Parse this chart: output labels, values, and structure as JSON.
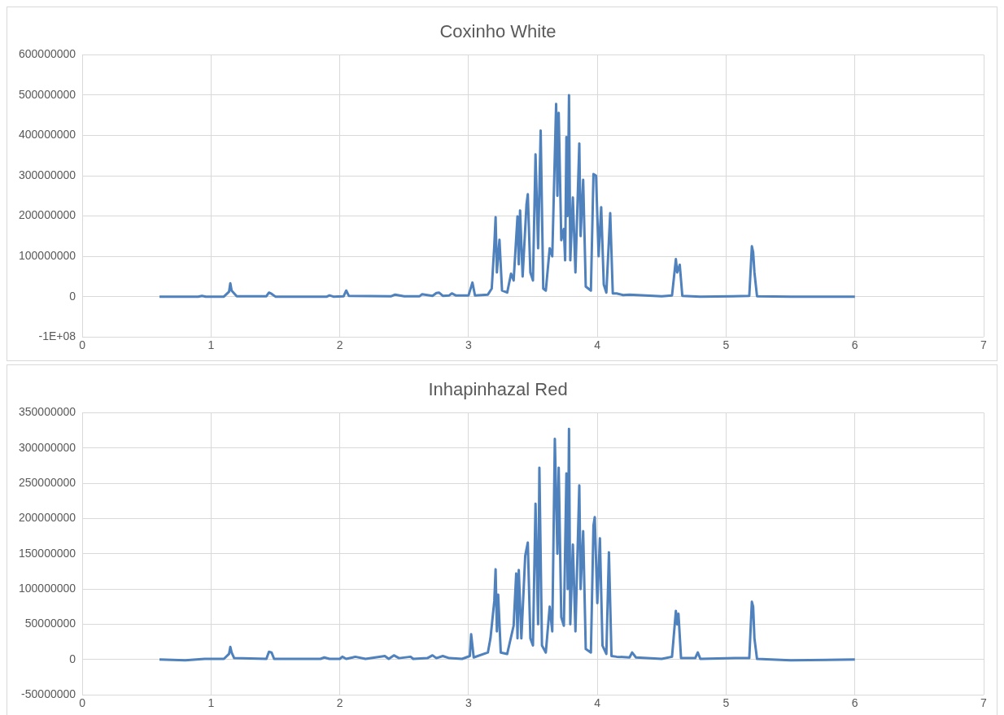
{
  "chart_data": [
    {
      "type": "line",
      "title": "Coxinho White",
      "xlim": [
        0,
        7
      ],
      "xticks": [
        0,
        1,
        2,
        3,
        4,
        5,
        6,
        7
      ],
      "ylim": [
        -100000000,
        600000000
      ],
      "yticks": [
        {
          "value": -100000000,
          "label": "-1E+08"
        },
        0,
        100000000,
        200000000,
        300000000,
        400000000,
        500000000,
        600000000
      ],
      "grid": true,
      "legend": false,
      "marker": "none",
      "series": [
        {
          "color": "#4f81bd",
          "x": [
            0.6,
            0.9,
            0.93,
            0.96,
            1.1,
            1.14,
            1.15,
            1.16,
            1.18,
            1.2,
            1.43,
            1.45,
            1.47,
            1.5,
            1.9,
            1.92,
            1.95,
            2.03,
            2.05,
            2.07,
            2.4,
            2.43,
            2.5,
            2.62,
            2.64,
            2.72,
            2.75,
            2.77,
            2.8,
            2.85,
            2.87,
            2.9,
            3.0,
            3.03,
            3.05,
            3.15,
            3.18,
            3.2,
            3.21,
            3.22,
            3.24,
            3.26,
            3.3,
            3.33,
            3.35,
            3.38,
            3.39,
            3.4,
            3.42,
            3.45,
            3.46,
            3.48,
            3.5,
            3.52,
            3.54,
            3.56,
            3.58,
            3.6,
            3.63,
            3.65,
            3.68,
            3.69,
            3.7,
            3.72,
            3.74,
            3.75,
            3.76,
            3.77,
            3.78,
            3.79,
            3.81,
            3.83,
            3.86,
            3.87,
            3.89,
            3.91,
            3.95,
            3.97,
            3.99,
            4.01,
            4.03,
            4.05,
            4.07,
            4.1,
            4.12,
            4.15,
            4.2,
            4.25,
            4.5,
            4.58,
            4.61,
            4.62,
            4.64,
            4.66,
            4.8,
            5.05,
            5.18,
            5.2,
            5.21,
            5.22,
            5.24,
            5.5,
            6.0
          ],
          "values": [
            0,
            0,
            2000000,
            0,
            0,
            12000000,
            33000000,
            15000000,
            8000000,
            1000000,
            1000000,
            10000000,
            7000000,
            0,
            0,
            3000000,
            0,
            1000000,
            15000000,
            2000000,
            1000000,
            5000000,
            1000000,
            1000000,
            6000000,
            2000000,
            9000000,
            10000000,
            2000000,
            3000000,
            8000000,
            3000000,
            3000000,
            35000000,
            3000000,
            5000000,
            20000000,
            127000000,
            197000000,
            60000000,
            141000000,
            15000000,
            10000000,
            57000000,
            40000000,
            199000000,
            80000000,
            214000000,
            50000000,
            229000000,
            254000000,
            60000000,
            40000000,
            353000000,
            120000000,
            412000000,
            20000000,
            15000000,
            120000000,
            100000000,
            478000000,
            250000000,
            456000000,
            140000000,
            168000000,
            90000000,
            396000000,
            200000000,
            500000000,
            90000000,
            246000000,
            60000000,
            380000000,
            150000000,
            290000000,
            25000000,
            15000000,
            304000000,
            300000000,
            100000000,
            222000000,
            30000000,
            10000000,
            207000000,
            8000000,
            8000000,
            4000000,
            5000000,
            1000000,
            3000000,
            93000000,
            60000000,
            79000000,
            2000000,
            0,
            1000000,
            2000000,
            125000000,
            110000000,
            60000000,
            1000000,
            0,
            0
          ]
        }
      ]
    },
    {
      "type": "line",
      "title": "Inhapinhazal Red",
      "xlim": [
        0,
        7
      ],
      "xticks": [
        0,
        1,
        2,
        3,
        4,
        5,
        6,
        7
      ],
      "ylim": [
        -50000000,
        350000000
      ],
      "yticks": [
        -50000000,
        0,
        50000000,
        100000000,
        150000000,
        200000000,
        250000000,
        300000000,
        350000000
      ],
      "grid": true,
      "legend": false,
      "marker": "none",
      "series": [
        {
          "color": "#4f81bd",
          "x": [
            0.6,
            0.8,
            0.95,
            1.1,
            1.14,
            1.15,
            1.16,
            1.18,
            1.43,
            1.45,
            1.47,
            1.49,
            1.85,
            1.88,
            1.92,
            2.0,
            2.02,
            2.05,
            2.1,
            2.12,
            2.2,
            2.35,
            2.38,
            2.42,
            2.46,
            2.55,
            2.57,
            2.68,
            2.72,
            2.75,
            2.8,
            2.85,
            2.95,
            3.01,
            3.02,
            3.04,
            3.15,
            3.17,
            3.2,
            3.21,
            3.22,
            3.23,
            3.25,
            3.3,
            3.35,
            3.37,
            3.38,
            3.39,
            3.41,
            3.44,
            3.46,
            3.48,
            3.5,
            3.52,
            3.54,
            3.55,
            3.57,
            3.6,
            3.63,
            3.65,
            3.67,
            3.69,
            3.7,
            3.72,
            3.74,
            3.76,
            3.77,
            3.78,
            3.79,
            3.81,
            3.83,
            3.86,
            3.87,
            3.89,
            3.91,
            3.95,
            3.97,
            3.98,
            4.0,
            4.02,
            4.04,
            4.07,
            4.09,
            4.11,
            4.15,
            4.25,
            4.27,
            4.3,
            4.5,
            4.58,
            4.61,
            4.62,
            4.63,
            4.65,
            4.76,
            4.78,
            4.8,
            5.07,
            5.18,
            5.2,
            5.21,
            5.22,
            5.24,
            5.5,
            6.0
          ],
          "values": [
            0,
            -1000000,
            1000000,
            1000000,
            8000000,
            18000000,
            10000000,
            2000000,
            1000000,
            11000000,
            10000000,
            1000000,
            1000000,
            3000000,
            1000000,
            1000000,
            4000000,
            1000000,
            3000000,
            4000000,
            1000000,
            5000000,
            1000000,
            6000000,
            2000000,
            4000000,
            1000000,
            2000000,
            6000000,
            2000000,
            5000000,
            2000000,
            1000000,
            5000000,
            36000000,
            3000000,
            10000000,
            30000000,
            83000000,
            128000000,
            40000000,
            92000000,
            10000000,
            8000000,
            48000000,
            122000000,
            30000000,
            127000000,
            30000000,
            147000000,
            166000000,
            30000000,
            20000000,
            221000000,
            50000000,
            272000000,
            20000000,
            10000000,
            75000000,
            40000000,
            313000000,
            150000000,
            272000000,
            60000000,
            48000000,
            264000000,
            100000000,
            327000000,
            50000000,
            163000000,
            40000000,
            247000000,
            100000000,
            182000000,
            15000000,
            10000000,
            190000000,
            202000000,
            80000000,
            172000000,
            20000000,
            8000000,
            152000000,
            5000000,
            4000000,
            3000000,
            10000000,
            3000000,
            1000000,
            4000000,
            69000000,
            50000000,
            65000000,
            2000000,
            2000000,
            10000000,
            1000000,
            2000000,
            2000000,
            82000000,
            75000000,
            30000000,
            1000000,
            -1000000,
            0
          ]
        }
      ]
    }
  ]
}
